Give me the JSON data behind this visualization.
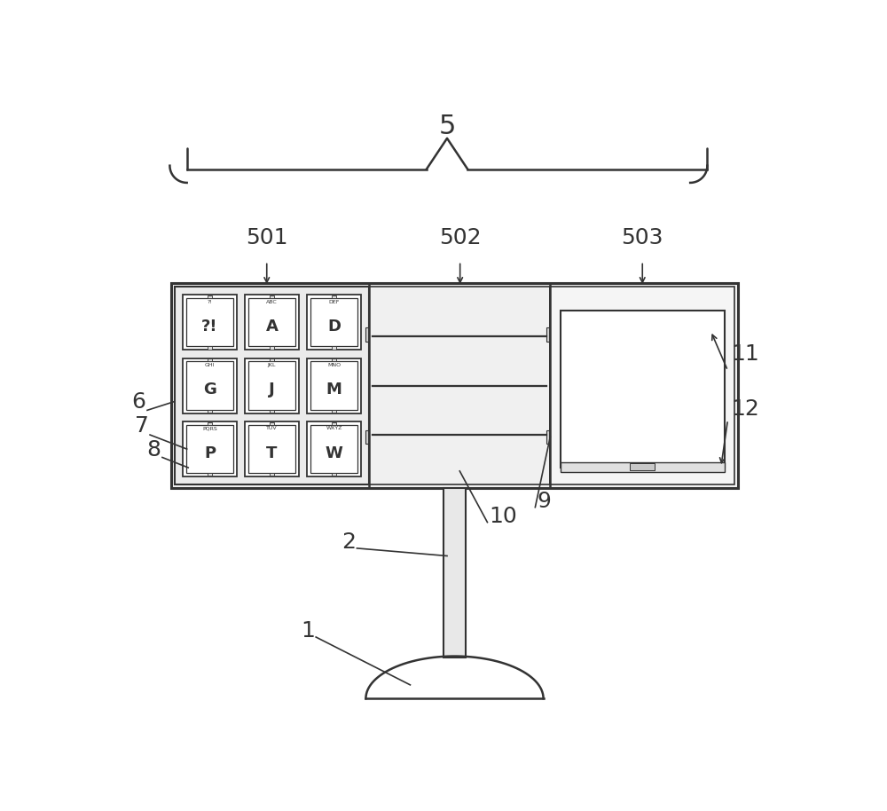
{
  "bg_color": "#ffffff",
  "lc": "#333333",
  "fig_w": 10.0,
  "fig_h": 9.14,
  "dpi": 100,
  "keys": [
    {
      "label": "?!",
      "sub": "?!",
      "col": 0,
      "row": 0
    },
    {
      "label": "A",
      "sub": "ABC",
      "col": 1,
      "row": 0
    },
    {
      "label": "D",
      "sub": "DEF",
      "col": 2,
      "row": 0
    },
    {
      "label": "G",
      "sub": "GHI",
      "col": 0,
      "row": 1
    },
    {
      "label": "J",
      "sub": "JKL",
      "col": 1,
      "row": 1
    },
    {
      "label": "M",
      "sub": "MNO",
      "col": 2,
      "row": 1
    },
    {
      "label": "P",
      "sub": "PQRS",
      "col": 0,
      "row": 2
    },
    {
      "label": "T",
      "sub": "TUV",
      "col": 1,
      "row": 2
    },
    {
      "label": "W",
      "sub": "WXYZ",
      "col": 2,
      "row": 2
    }
  ]
}
